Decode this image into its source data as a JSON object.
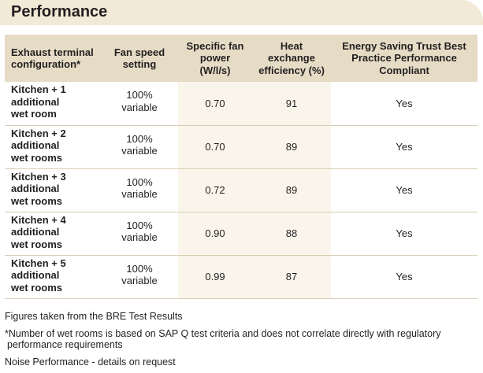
{
  "header": {
    "title": "Performance"
  },
  "table": {
    "headers": [
      {
        "lines": [
          "Exhaust terminal",
          "configuration*"
        ]
      },
      {
        "lines": [
          "Fan speed",
          "setting"
        ]
      },
      {
        "lines": [
          "Specific fan",
          "power",
          "(W/l/s)"
        ]
      },
      {
        "lines": [
          "Heat",
          "exchange",
          "efficiency (%)"
        ]
      },
      {
        "lines": [
          "Energy Saving Trust Best",
          "Practice Performance",
          "Compliant"
        ]
      }
    ],
    "rows": [
      {
        "config": [
          "Kitchen + 1",
          "additional",
          "wet room"
        ],
        "speed": [
          "100%",
          "variable"
        ],
        "sfp": "0.70",
        "eff": "91",
        "compliant": "Yes"
      },
      {
        "config": [
          "Kitchen + 2",
          "additional",
          "wet rooms"
        ],
        "speed": [
          "100%",
          "variable"
        ],
        "sfp": "0.70",
        "eff": "89",
        "compliant": "Yes"
      },
      {
        "config": [
          "Kitchen + 3",
          "additional",
          "wet rooms"
        ],
        "speed": [
          "100%",
          "variable"
        ],
        "sfp": "0.72",
        "eff": "89",
        "compliant": "Yes"
      },
      {
        "config": [
          "Kitchen + 4",
          "additional",
          "wet rooms"
        ],
        "speed": [
          "100%",
          "variable"
        ],
        "sfp": "0.90",
        "eff": "88",
        "compliant": "Yes"
      },
      {
        "config": [
          "Kitchen + 5",
          "additional",
          "wet rooms"
        ],
        "speed": [
          "100%",
          "variable"
        ],
        "sfp": "0.99",
        "eff": "87",
        "compliant": "Yes"
      }
    ]
  },
  "notes": {
    "source": "Figures taken from the BRE Test Results",
    "footnote_line1": "*Number of wet rooms is based on SAP Q test criteria and does not correlate directly with regulatory",
    "footnote_line2": "performance requirements",
    "noise": "Noise Performance - details on request"
  },
  "colors": {
    "header_bg": "#f2e9d6",
    "table_header_bg": "#e6dcc6",
    "highlight_bg": "#f9f5ea",
    "rule": "#d8cdb4"
  }
}
